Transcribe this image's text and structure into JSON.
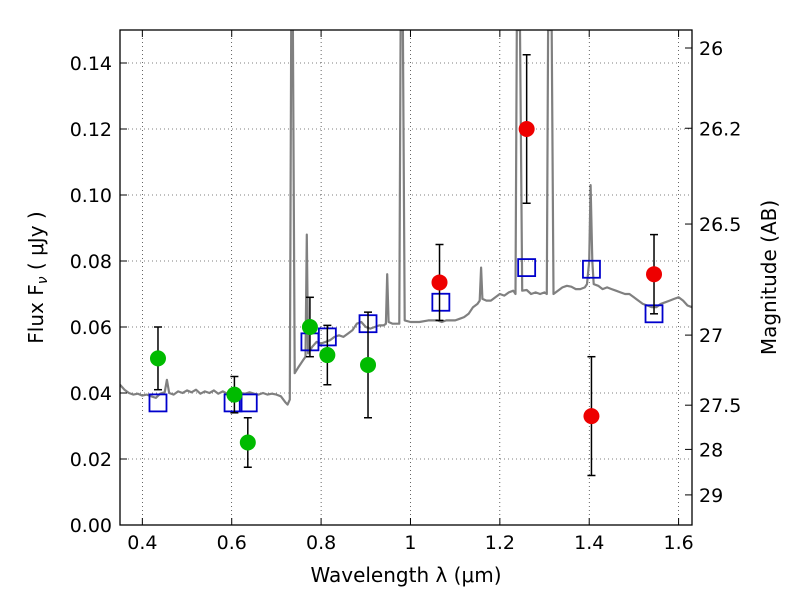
{
  "chart_data": {
    "type": "scatter",
    "xlabel": "Wavelength  λ (μm)",
    "ylabel": "Flux  F",
    "ylabel_sub": "ν",
    "ylabel_unit": "  ( μJy )",
    "y2label": "Magnitude (AB)",
    "xlim": [
      0.35,
      1.63
    ],
    "ylim": [
      0.0,
      0.15
    ],
    "grid": true,
    "x_ticks": [
      {
        "value": 0.4,
        "label": "0.4"
      },
      {
        "value": 0.6,
        "label": "0.6"
      },
      {
        "value": 0.8,
        "label": "0.8"
      },
      {
        "value": 1.0,
        "label": "1"
      },
      {
        "value": 1.2,
        "label": "1.2"
      },
      {
        "value": 1.4,
        "label": "1.4"
      },
      {
        "value": 1.6,
        "label": "1.6"
      }
    ],
    "y_ticks": [
      {
        "value": 0.0,
        "label": "0.00"
      },
      {
        "value": 0.02,
        "label": "0.02"
      },
      {
        "value": 0.04,
        "label": "0.04"
      },
      {
        "value": 0.06,
        "label": "0.06"
      },
      {
        "value": 0.08,
        "label": "0.08"
      },
      {
        "value": 0.1,
        "label": "0.10"
      },
      {
        "value": 0.12,
        "label": "0.12"
      },
      {
        "value": 0.14,
        "label": "0.14"
      }
    ],
    "y2_ticks": [
      {
        "label": "26",
        "value": 26.0
      },
      {
        "label": "26.2",
        "value": 26.2
      },
      {
        "label": "26.5",
        "value": 26.5
      },
      {
        "label": "27",
        "value": 27.0
      },
      {
        "label": "27.5",
        "value": 27.5
      },
      {
        "label": "28",
        "value": 28.0
      },
      {
        "label": "29",
        "value": 29.0
      }
    ],
    "series": [
      {
        "marker": "circle",
        "color": "#00bb00",
        "points": [
          {
            "x": 0.435,
            "y": 0.0505,
            "err": 0.0095
          },
          {
            "x": 0.606,
            "y": 0.0395,
            "err": 0.0055
          },
          {
            "x": 0.636,
            "y": 0.025,
            "err": 0.0075
          },
          {
            "x": 0.775,
            "y": 0.06,
            "err": 0.009
          },
          {
            "x": 0.814,
            "y": 0.0515,
            "err": 0.009
          },
          {
            "x": 0.905,
            "y": 0.0485,
            "err": 0.016
          }
        ]
      },
      {
        "marker": "circle",
        "color": "#ee0000",
        "points": [
          {
            "x": 1.065,
            "y": 0.0735,
            "err": 0.0115
          },
          {
            "x": 1.26,
            "y": 0.12,
            "err": 0.0225
          },
          {
            "x": 1.405,
            "y": 0.033,
            "err": 0.018
          },
          {
            "x": 1.545,
            "y": 0.076,
            "err": 0.012
          }
        ]
      },
      {
        "marker": "square",
        "color": "#0000cc",
        "points": [
          {
            "x": 0.435,
            "y": 0.037
          },
          {
            "x": 0.603,
            "y": 0.037
          },
          {
            "x": 0.637,
            "y": 0.037
          },
          {
            "x": 0.775,
            "y": 0.0555
          },
          {
            "x": 0.814,
            "y": 0.057
          },
          {
            "x": 0.905,
            "y": 0.061
          },
          {
            "x": 1.068,
            "y": 0.0675
          },
          {
            "x": 1.26,
            "y": 0.078
          },
          {
            "x": 1.405,
            "y": 0.0775
          },
          {
            "x": 1.545,
            "y": 0.064
          }
        ]
      },
      {
        "line": true,
        "color": "#808080",
        "points": [
          [
            0.35,
            0.0425
          ],
          [
            0.36,
            0.041
          ],
          [
            0.37,
            0.04
          ],
          [
            0.38,
            0.0395
          ],
          [
            0.39,
            0.0398
          ],
          [
            0.4,
            0.0392
          ],
          [
            0.41,
            0.0395
          ],
          [
            0.42,
            0.039
          ],
          [
            0.43,
            0.0385
          ],
          [
            0.44,
            0.0398
          ],
          [
            0.45,
            0.0402
          ],
          [
            0.455,
            0.044
          ],
          [
            0.46,
            0.04
          ],
          [
            0.47,
            0.0395
          ],
          [
            0.48,
            0.0405
          ],
          [
            0.49,
            0.04
          ],
          [
            0.5,
            0.0408
          ],
          [
            0.51,
            0.0402
          ],
          [
            0.52,
            0.041
          ],
          [
            0.53,
            0.0398
          ],
          [
            0.54,
            0.0405
          ],
          [
            0.55,
            0.04
          ],
          [
            0.56,
            0.0408
          ],
          [
            0.57,
            0.0398
          ],
          [
            0.58,
            0.0405
          ],
          [
            0.59,
            0.0398
          ],
          [
            0.6,
            0.0402
          ],
          [
            0.61,
            0.0398
          ],
          [
            0.62,
            0.04
          ],
          [
            0.63,
            0.0398
          ],
          [
            0.64,
            0.0402
          ],
          [
            0.65,
            0.0398
          ],
          [
            0.66,
            0.0395
          ],
          [
            0.67,
            0.04
          ],
          [
            0.68,
            0.0395
          ],
          [
            0.69,
            0.0398
          ],
          [
            0.7,
            0.0395
          ],
          [
            0.71,
            0.039
          ],
          [
            0.72,
            0.0372
          ],
          [
            0.725,
            0.0365
          ],
          [
            0.73,
            0.038
          ],
          [
            0.733,
            0.15
          ],
          [
            0.737,
            0.15
          ],
          [
            0.741,
            0.046
          ],
          [
            0.75,
            0.048
          ],
          [
            0.76,
            0.05
          ],
          [
            0.765,
            0.051
          ],
          [
            0.768,
            0.088
          ],
          [
            0.771,
            0.052
          ],
          [
            0.78,
            0.054
          ],
          [
            0.79,
            0.0555
          ],
          [
            0.8,
            0.055
          ],
          [
            0.81,
            0.0555
          ],
          [
            0.82,
            0.056
          ],
          [
            0.83,
            0.057
          ],
          [
            0.84,
            0.0575
          ],
          [
            0.85,
            0.057
          ],
          [
            0.86,
            0.058
          ],
          [
            0.87,
            0.059
          ],
          [
            0.88,
            0.061
          ],
          [
            0.89,
            0.0615
          ],
          [
            0.9,
            0.06
          ],
          [
            0.91,
            0.0595
          ],
          [
            0.92,
            0.06
          ],
          [
            0.93,
            0.0605
          ],
          [
            0.94,
            0.0605
          ],
          [
            0.945,
            0.061
          ],
          [
            0.948,
            0.076
          ],
          [
            0.951,
            0.0615
          ],
          [
            0.96,
            0.061
          ],
          [
            0.97,
            0.061
          ],
          [
            0.975,
            0.061
          ],
          [
            0.978,
            0.15
          ],
          [
            0.983,
            0.15
          ],
          [
            0.987,
            0.062
          ],
          [
            1.0,
            0.0615
          ],
          [
            1.02,
            0.0615
          ],
          [
            1.04,
            0.062
          ],
          [
            1.06,
            0.062
          ],
          [
            1.07,
            0.0615
          ],
          [
            1.08,
            0.062
          ],
          [
            1.09,
            0.062
          ],
          [
            1.1,
            0.062
          ],
          [
            1.11,
            0.0625
          ],
          [
            1.12,
            0.063
          ],
          [
            1.13,
            0.064
          ],
          [
            1.14,
            0.066
          ],
          [
            1.15,
            0.067
          ],
          [
            1.155,
            0.068
          ],
          [
            1.158,
            0.078
          ],
          [
            1.161,
            0.0685
          ],
          [
            1.17,
            0.068
          ],
          [
            1.18,
            0.068
          ],
          [
            1.19,
            0.069
          ],
          [
            1.2,
            0.07
          ],
          [
            1.21,
            0.0695
          ],
          [
            1.22,
            0.0705
          ],
          [
            1.23,
            0.071
          ],
          [
            1.235,
            0.07
          ],
          [
            1.238,
            0.15
          ],
          [
            1.245,
            0.15
          ],
          [
            1.25,
            0.071
          ],
          [
            1.26,
            0.0712
          ],
          [
            1.27,
            0.07
          ],
          [
            1.28,
            0.0705
          ],
          [
            1.29,
            0.07
          ],
          [
            1.3,
            0.0705
          ],
          [
            1.305,
            0.07
          ],
          [
            1.308,
            0.15
          ],
          [
            1.316,
            0.15
          ],
          [
            1.32,
            0.07
          ],
          [
            1.33,
            0.071
          ],
          [
            1.34,
            0.072
          ],
          [
            1.35,
            0.0725
          ],
          [
            1.36,
            0.0722
          ],
          [
            1.37,
            0.0715
          ],
          [
            1.38,
            0.0715
          ],
          [
            1.39,
            0.072
          ],
          [
            1.395,
            0.073
          ],
          [
            1.4,
            0.08
          ],
          [
            1.403,
            0.103
          ],
          [
            1.407,
            0.08
          ],
          [
            1.41,
            0.073
          ],
          [
            1.42,
            0.0725
          ],
          [
            1.43,
            0.0715
          ],
          [
            1.44,
            0.072
          ],
          [
            1.45,
            0.0715
          ],
          [
            1.46,
            0.071
          ],
          [
            1.47,
            0.0705
          ],
          [
            1.48,
            0.07
          ],
          [
            1.49,
            0.07
          ],
          [
            1.5,
            0.069
          ],
          [
            1.51,
            0.068
          ],
          [
            1.52,
            0.067
          ],
          [
            1.53,
            0.0665
          ],
          [
            1.54,
            0.066
          ],
          [
            1.55,
            0.066
          ],
          [
            1.56,
            0.067
          ],
          [
            1.57,
            0.0675
          ],
          [
            1.58,
            0.068
          ],
          [
            1.59,
            0.0685
          ],
          [
            1.6,
            0.069
          ],
          [
            1.61,
            0.068
          ],
          [
            1.62,
            0.0665
          ],
          [
            1.63,
            0.066
          ]
        ]
      }
    ]
  }
}
